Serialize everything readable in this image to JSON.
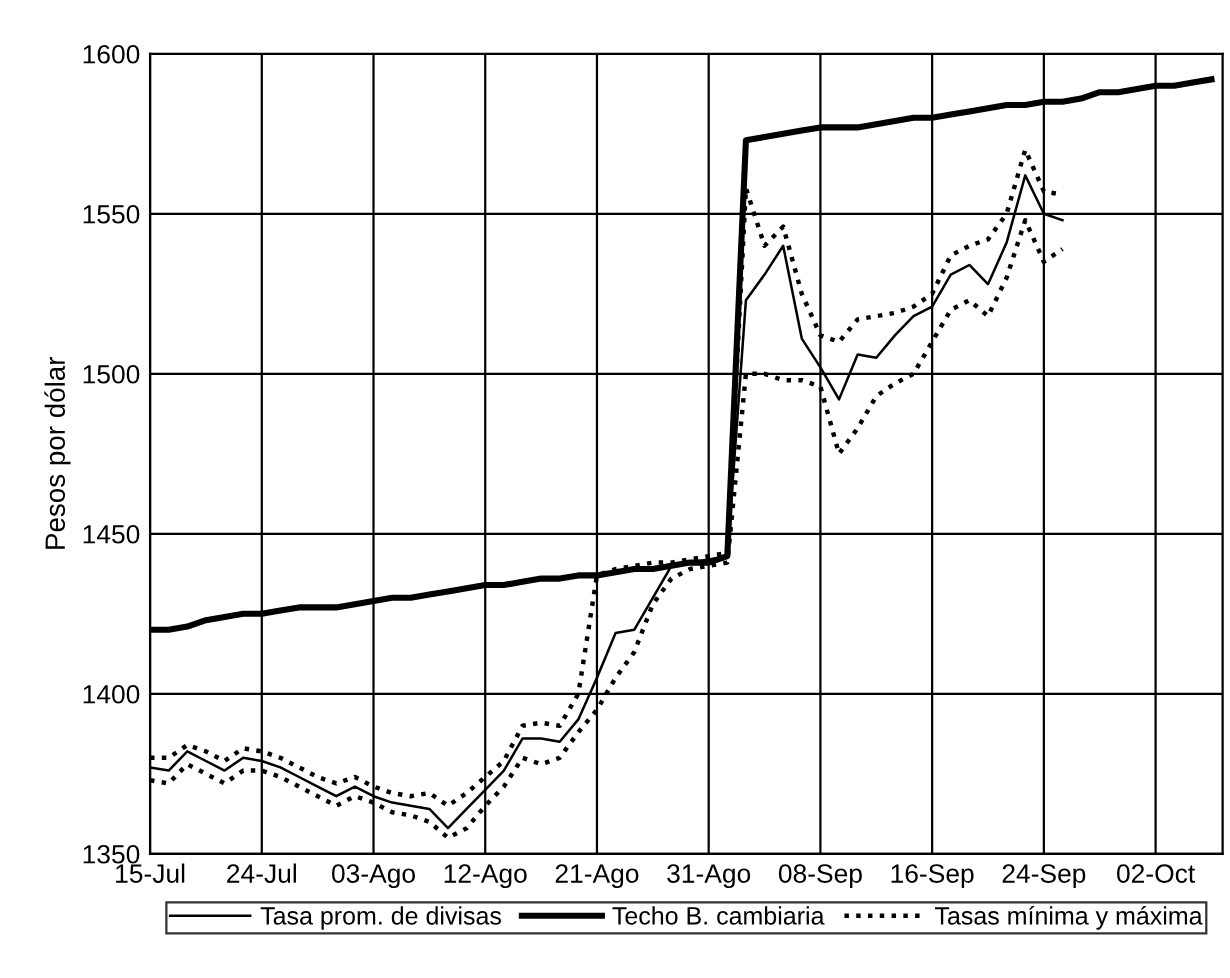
{
  "chart_data": {
    "type": "line",
    "ylabel": "Pesos por dólar",
    "categories": [
      "15-Jul",
      null,
      null,
      null,
      null,
      null,
      "24-Jul",
      null,
      null,
      null,
      null,
      null,
      "03-Ago",
      null,
      null,
      null,
      null,
      null,
      "12-Ago",
      null,
      null,
      null,
      null,
      null,
      "21-Ago",
      null,
      null,
      null,
      null,
      null,
      "31-Ago",
      null,
      null,
      null,
      null,
      null,
      "08-Sep",
      null,
      null,
      null,
      null,
      null,
      "16-Sep",
      null,
      null,
      null,
      null,
      null,
      "24-Sep",
      null,
      null,
      null,
      null,
      null,
      "02-Oct",
      null,
      null,
      null
    ],
    "series": [
      {
        "name": "Tasa prom. de divisas",
        "color": "#000000",
        "line_style": "solid",
        "values": [
          1377,
          1376,
          1382,
          1379,
          1376,
          1380,
          1379,
          1377,
          1374,
          1371,
          1368,
          1371,
          1368,
          1366,
          1365,
          1364,
          1358,
          1364,
          1370,
          1376,
          1386,
          1386,
          1385,
          1392,
          1405,
          1419,
          1420,
          1430,
          1440,
          1441,
          1442,
          1443,
          1523,
          1531,
          1540,
          1511,
          1502,
          1492,
          1506,
          1505,
          1512,
          1518,
          1521,
          1531,
          1534,
          1528,
          1541,
          1562,
          1550,
          1548,
          null,
          null,
          null,
          null,
          null,
          null,
          null,
          null
        ]
      },
      {
        "name": "Techo B. cambiaria",
        "color": "#000000",
        "line_style": "solid",
        "values": [
          1420,
          1420,
          1421,
          1423,
          1424,
          1425,
          1425,
          1426,
          1427,
          1427,
          1427,
          1428,
          1429,
          1430,
          1430,
          1431,
          1432,
          1433,
          1434,
          1434,
          1435,
          1436,
          1436,
          1437,
          1437,
          1438,
          1439,
          1439,
          1440,
          1441,
          1441,
          1443,
          1573,
          1574,
          1575,
          1576,
          1577,
          1577,
          1577,
          1578,
          1579,
          1580,
          1580,
          1581,
          1582,
          1583,
          1584,
          1584,
          1585,
          1585,
          1586,
          1588,
          1588,
          1589,
          1590,
          1590,
          1591,
          1592
        ]
      },
      {
        "name": "Tasas mínima y máxima",
        "color": "#000000",
        "line_style": "dotted",
        "values": [
          1380,
          1380,
          1384,
          1382,
          1379,
          1383,
          1382,
          1380,
          1377,
          1374,
          1372,
          1374,
          1371,
          1369,
          1368,
          1369,
          1365,
          1369,
          1374,
          1379,
          1390,
          1391,
          1390,
          1400,
          1437,
          1439,
          1440,
          1441,
          1441,
          1442,
          1443,
          1444,
          1558,
          1540,
          1546,
          1525,
          1512,
          1510,
          1517,
          1518,
          1519,
          1521,
          1525,
          1537,
          1540,
          1542,
          1550,
          1570,
          1557,
          1556,
          null,
          null,
          null,
          null,
          null,
          null,
          null,
          null
        ]
      },
      {
        "color": "#000000",
        "line_style": "dotted",
        "values": [
          1373,
          1372,
          1378,
          1375,
          1372,
          1376,
          1376,
          1374,
          1371,
          1368,
          1365,
          1368,
          1366,
          1363,
          1362,
          1360,
          1355,
          1358,
          1365,
          1371,
          1380,
          1378,
          1380,
          1388,
          1395,
          1405,
          1413,
          1428,
          1436,
          1439,
          1440,
          1441,
          1500,
          1500,
          1498,
          1498,
          1496,
          1475,
          1483,
          1493,
          1497,
          1500,
          1510,
          1520,
          1523,
          1518,
          1530,
          1548,
          1535,
          1539,
          null,
          null,
          null,
          null,
          null,
          null,
          null,
          null
        ]
      }
    ],
    "ylim": [
      1350,
      1600
    ],
    "yticks": [
      1350,
      1400,
      1450,
      1500,
      1550,
      1600
    ],
    "grid": true,
    "legend": "bottom",
    "marker": "none"
  }
}
